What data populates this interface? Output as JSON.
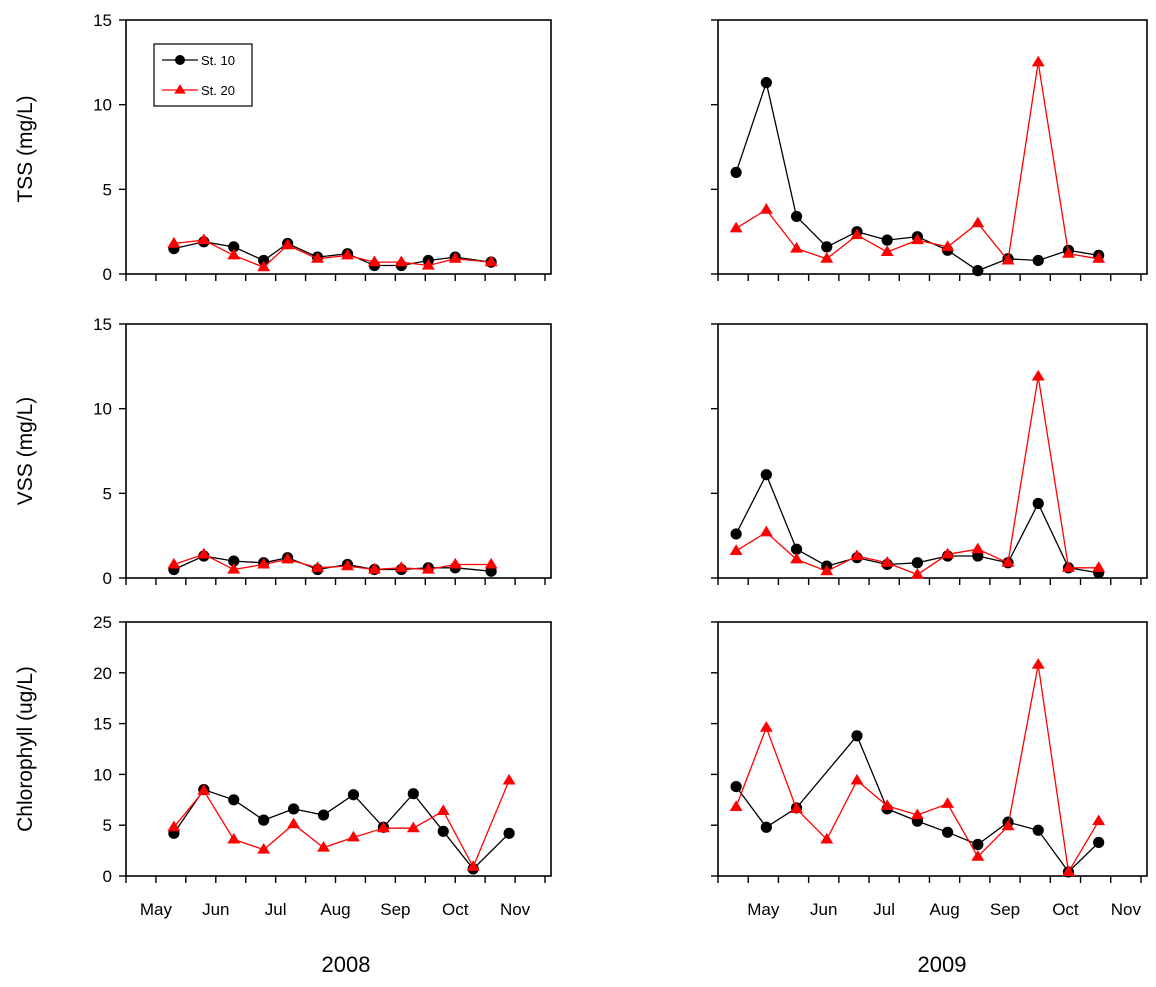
{
  "colors": {
    "st10": "#000000",
    "st20": "#ff0000",
    "axis": "#000000"
  },
  "legend": [
    "St. 10",
    "St. 20"
  ],
  "row_labels": [
    "TSS (mg/L)",
    "VSS (mg/L)",
    "Chlorophyll (ug/L)"
  ],
  "year_labels": [
    "2008",
    "2009"
  ],
  "chart_data": [
    {
      "type": "line",
      "panel": "TSS 2008",
      "ylabel": "TSS (mg/L)",
      "year": "2008",
      "ylim": [
        0,
        15
      ],
      "yticks": [
        0,
        5,
        10,
        15
      ],
      "xlim": [
        0,
        14.2
      ],
      "month_labels": [
        "May",
        "Jun",
        "Jul",
        "Aug",
        "Sep",
        "Oct",
        "Nov"
      ],
      "legend_position": "top-left",
      "show_legend": true,
      "series": [
        {
          "name": "St. 10",
          "marker": "circle",
          "x": [
            1.6,
            2.6,
            3.6,
            4.6,
            5.4,
            6.4,
            7.4,
            8.3,
            9.2,
            10.1,
            11.0,
            12.2
          ],
          "y": [
            1.5,
            1.9,
            1.6,
            0.8,
            1.8,
            1.0,
            1.2,
            0.5,
            0.5,
            0.8,
            1.0,
            0.7
          ]
        },
        {
          "name": "St. 20",
          "marker": "triangle",
          "x": [
            1.6,
            2.6,
            3.6,
            4.6,
            5.4,
            6.4,
            7.4,
            8.3,
            9.2,
            10.1,
            11.0,
            12.2
          ],
          "y": [
            1.8,
            2.0,
            1.1,
            0.4,
            1.7,
            0.9,
            1.1,
            0.7,
            0.7,
            0.5,
            0.9,
            0.7
          ]
        }
      ]
    },
    {
      "type": "line",
      "panel": "TSS 2009",
      "ylabel": "TSS (mg/L)",
      "year": "2009",
      "ylim": [
        0,
        15
      ],
      "yticks": [
        0,
        5,
        10,
        15
      ],
      "xlim": [
        0,
        14.2
      ],
      "month_labels": [
        "May",
        "Jun",
        "Jul",
        "Aug",
        "Sep",
        "Oct",
        "Nov"
      ],
      "show_legend": false,
      "series": [
        {
          "name": "St. 10",
          "marker": "circle",
          "x": [
            0.6,
            1.6,
            2.6,
            3.6,
            4.6,
            5.6,
            6.6,
            7.6,
            8.6,
            9.6,
            10.6,
            11.6,
            12.6
          ],
          "y": [
            6.0,
            11.3,
            3.4,
            1.6,
            2.5,
            2.0,
            2.2,
            1.4,
            0.2,
            0.9,
            0.8,
            1.4,
            1.1
          ]
        },
        {
          "name": "St. 20",
          "marker": "triangle",
          "x": [
            0.6,
            1.6,
            2.6,
            3.6,
            4.6,
            5.6,
            6.6,
            7.6,
            8.6,
            9.6,
            10.6,
            11.6,
            12.6
          ],
          "y": [
            2.7,
            3.8,
            1.5,
            0.9,
            2.3,
            1.3,
            2.0,
            1.6,
            3.0,
            0.8,
            12.5,
            1.2,
            0.9
          ]
        }
      ]
    },
    {
      "type": "line",
      "panel": "VSS 2008",
      "ylabel": "VSS (mg/L)",
      "year": "2008",
      "ylim": [
        0,
        15
      ],
      "yticks": [
        0,
        5,
        10,
        15
      ],
      "xlim": [
        0,
        14.2
      ],
      "month_labels": [
        "May",
        "Jun",
        "Jul",
        "Aug",
        "Sep",
        "Oct",
        "Nov"
      ],
      "show_legend": false,
      "series": [
        {
          "name": "St. 10",
          "marker": "circle",
          "x": [
            1.6,
            2.6,
            3.6,
            4.6,
            5.4,
            6.4,
            7.4,
            8.3,
            9.2,
            10.1,
            11.0,
            12.2
          ],
          "y": [
            0.5,
            1.3,
            1.0,
            0.9,
            1.2,
            0.5,
            0.8,
            0.5,
            0.5,
            0.6,
            0.6,
            0.4
          ]
        },
        {
          "name": "St. 20",
          "marker": "triangle",
          "x": [
            1.6,
            2.6,
            3.6,
            4.6,
            5.4,
            6.4,
            7.4,
            8.3,
            9.2,
            10.1,
            11.0,
            12.2
          ],
          "y": [
            0.8,
            1.4,
            0.5,
            0.8,
            1.1,
            0.6,
            0.7,
            0.5,
            0.6,
            0.5,
            0.8,
            0.8
          ]
        }
      ]
    },
    {
      "type": "line",
      "panel": "VSS 2009",
      "ylabel": "VSS (mg/L)",
      "year": "2009",
      "ylim": [
        0,
        15
      ],
      "yticks": [
        0,
        5,
        10,
        15
      ],
      "xlim": [
        0,
        14.2
      ],
      "month_labels": [
        "May",
        "Jun",
        "Jul",
        "Aug",
        "Sep",
        "Oct",
        "Nov"
      ],
      "show_legend": false,
      "series": [
        {
          "name": "St. 10",
          "marker": "circle",
          "x": [
            0.6,
            1.6,
            2.6,
            3.6,
            4.6,
            5.6,
            6.6,
            7.6,
            8.6,
            9.6,
            10.6,
            11.6,
            12.6
          ],
          "y": [
            2.6,
            6.1,
            1.7,
            0.7,
            1.2,
            0.8,
            0.9,
            1.3,
            1.3,
            0.9,
            4.4,
            0.6,
            0.3
          ]
        },
        {
          "name": "St. 20",
          "marker": "triangle",
          "x": [
            0.6,
            1.6,
            2.6,
            3.6,
            4.6,
            5.6,
            6.6,
            7.6,
            8.6,
            9.6,
            10.6,
            11.6,
            12.6
          ],
          "y": [
            1.6,
            2.7,
            1.1,
            0.4,
            1.3,
            0.9,
            0.2,
            1.4,
            1.7,
            0.9,
            11.9,
            0.6,
            0.6
          ]
        }
      ]
    },
    {
      "type": "line",
      "panel": "Chlorophyll 2008",
      "ylabel": "Chlorophyll (ug/L)",
      "year": "2008",
      "ylim": [
        0,
        25
      ],
      "yticks": [
        0,
        5,
        10,
        15,
        20,
        25
      ],
      "xlim": [
        0,
        14.2
      ],
      "month_labels": [
        "May",
        "Jun",
        "Jul",
        "Aug",
        "Sep",
        "Oct",
        "Nov"
      ],
      "show_legend": false,
      "series": [
        {
          "name": "St. 10",
          "marker": "circle",
          "x": [
            1.6,
            2.6,
            3.6,
            4.6,
            5.6,
            6.6,
            7.6,
            8.6,
            9.6,
            10.6,
            11.6,
            12.8
          ],
          "y": [
            4.2,
            8.5,
            7.5,
            5.5,
            6.6,
            6.0,
            8.0,
            4.8,
            8.1,
            4.4,
            0.7,
            4.2
          ]
        },
        {
          "name": "St. 20",
          "marker": "triangle",
          "x": [
            1.6,
            2.6,
            3.6,
            4.6,
            5.6,
            6.6,
            7.6,
            8.6,
            9.6,
            10.6,
            11.6,
            12.8
          ],
          "y": [
            4.8,
            8.4,
            3.6,
            2.6,
            5.1,
            2.8,
            3.8,
            4.7,
            4.7,
            6.4,
            0.9,
            9.4
          ]
        }
      ]
    },
    {
      "type": "line",
      "panel": "Chlorophyll 2009",
      "ylabel": "Chlorophyll (ug/L)",
      "year": "2009",
      "ylim": [
        0,
        25
      ],
      "yticks": [
        0,
        5,
        10,
        15,
        20,
        25
      ],
      "xlim": [
        0,
        14.2
      ],
      "month_labels": [
        "May",
        "Jun",
        "Jul",
        "Aug",
        "Sep",
        "Oct",
        "Nov"
      ],
      "show_legend": false,
      "series": [
        {
          "name": "St. 10",
          "marker": "circle",
          "x": [
            0.6,
            1.6,
            2.6,
            4.6,
            5.6,
            6.6,
            7.6,
            8.6,
            9.6,
            10.6,
            11.6,
            12.6
          ],
          "y": [
            8.8,
            4.8,
            6.7,
            13.8,
            6.6,
            5.4,
            4.3,
            3.1,
            5.3,
            4.5,
            0.4,
            3.3
          ]
        },
        {
          "name": "St. 20",
          "marker": "triangle",
          "x": [
            0.6,
            1.6,
            2.6,
            3.6,
            4.6,
            5.6,
            6.6,
            7.6,
            8.6,
            9.6,
            10.6,
            11.6,
            12.6
          ],
          "y": [
            6.8,
            14.6,
            6.6,
            3.6,
            9.4,
            6.9,
            6.0,
            7.1,
            1.9,
            4.9,
            20.8,
            0.4,
            5.4
          ]
        }
      ]
    }
  ]
}
